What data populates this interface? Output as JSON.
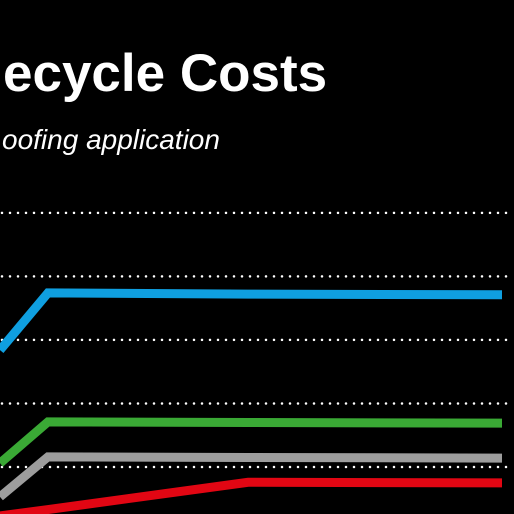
{
  "chart_data": {
    "type": "line",
    "title": "ecycle Costs",
    "subtitle": "oofing application",
    "x": [
      0,
      1,
      5.17,
      10.46
    ],
    "xlim": [
      0,
      10.71
    ],
    "ylim": [
      0.26,
      8.35
    ],
    "yticks": [
      1,
      2,
      3,
      4,
      5
    ],
    "grid": true,
    "series": [
      {
        "color": "#0f9fe0",
        "values": [
          2.84,
          3.74,
          3.72,
          3.71
        ]
      },
      {
        "color": "#3aa935",
        "values": [
          1.06,
          1.71,
          1.7,
          1.69
        ]
      },
      {
        "color": "#9d9d9d",
        "values": [
          0.53,
          1.16,
          1.15,
          1.14
        ]
      },
      {
        "color": "#e20613",
        "values": [
          0.23,
          0.33,
          0.76,
          0.75
        ]
      }
    ]
  }
}
